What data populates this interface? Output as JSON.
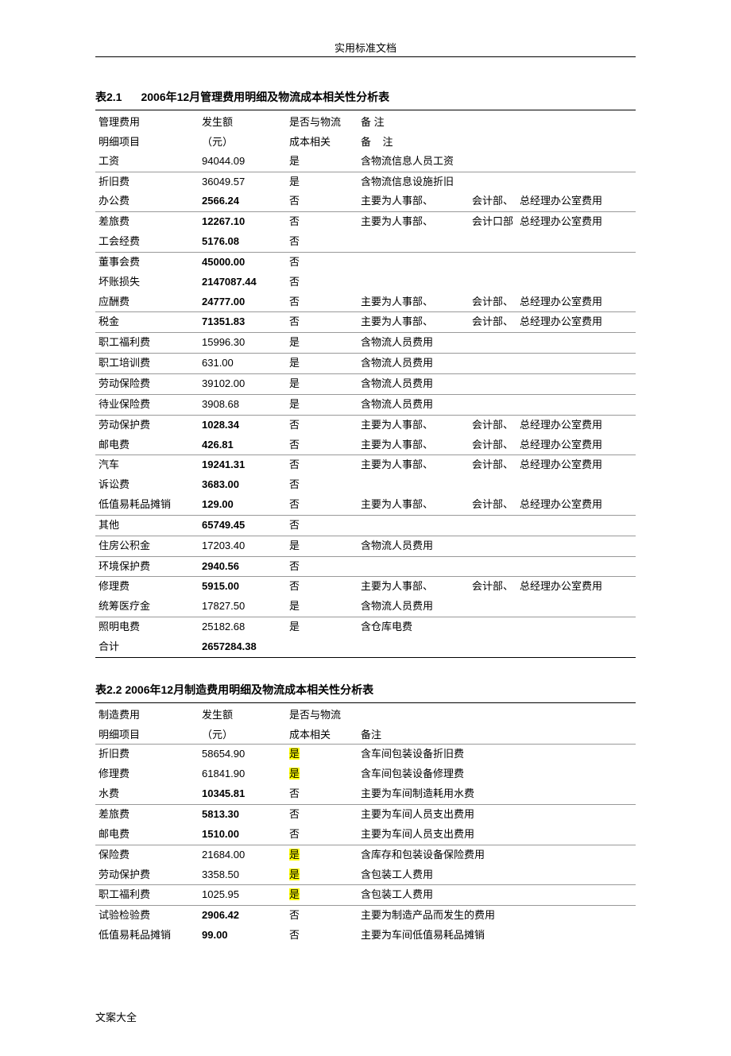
{
  "page": {
    "header": "实用标准文档",
    "footer": "文案大全"
  },
  "table1": {
    "titleNum": "表2.1",
    "titleText": "2006年12月管理费用明细及物流成本相关性分析表",
    "headers": {
      "item1": "管理费用",
      "item2": "明细项目",
      "amount1": "发生额",
      "amount2": "（元）",
      "related1": "是否与物流",
      "related2": "成本相关",
      "remarkA": "备 注",
      "remarkB1": "备",
      "remarkB2": "注"
    },
    "rows": [
      {
        "item": "工资",
        "amount": "94044.09",
        "amountBold": false,
        "related": "是",
        "r1": "含物流信息人员工资",
        "r2": "",
        "r3": "",
        "sep": false
      },
      {
        "item": "折旧费",
        "amount": "36049.57",
        "amountBold": false,
        "related": "是",
        "r1": "含物流信息设施折旧",
        "r2": "",
        "r3": "",
        "sep": true
      },
      {
        "item": "办公费",
        "amount": "2566.24",
        "amountBold": true,
        "related": "否",
        "r1": "主要为人事部、",
        "r2": "会计部、",
        "r3": "总经理办公室费用",
        "sep": false
      },
      {
        "item": "差旅费",
        "amount": "12267.10",
        "amountBold": true,
        "related": "否",
        "r1": "主要为人事部、",
        "r2": "会计口部",
        "r3": "总经理办公室费用",
        "sep": true
      },
      {
        "item": "工会经费",
        "amount": "5176.08",
        "amountBold": true,
        "related": "否",
        "r1": "",
        "r2": "",
        "r3": "",
        "sep": false
      },
      {
        "item": "董事会费",
        "amount": "45000.00",
        "amountBold": true,
        "related": "否",
        "r1": "",
        "r2": "",
        "r3": "",
        "sep": true
      },
      {
        "item": "坏账损失",
        "amount": "2147087.44",
        "amountBold": true,
        "related": "否",
        "r1": "",
        "r2": "",
        "r3": "",
        "sep": false
      },
      {
        "item": "应酬费",
        "amount": "24777.00",
        "amountBold": true,
        "related": "否",
        "r1": "主要为人事部、",
        "r2": "会计部、",
        "r3": "总经理办公室费用",
        "sep": false
      },
      {
        "item": "税金",
        "amount": "71351.83",
        "amountBold": true,
        "related": "否",
        "r1": "主要为人事部、",
        "r2": "会计部、",
        "r3": "总经理办公室费用",
        "sep": true
      },
      {
        "item": "职工福利费",
        "amount": "15996.30",
        "amountBold": false,
        "related": "是",
        "r1": "含物流人员费用",
        "r2": "",
        "r3": "",
        "sep": true
      },
      {
        "item": "职工培训费",
        "amount": "631.00",
        "amountBold": false,
        "related": "是",
        "r1": "含物流人员费用",
        "r2": "",
        "r3": "",
        "sep": true
      },
      {
        "item": "劳动保险费",
        "amount": "39102.00",
        "amountBold": false,
        "related": "是",
        "r1": "含物流人员费用",
        "r2": "",
        "r3": "",
        "sep": true
      },
      {
        "item": "待业保险费",
        "amount": "3908.68",
        "amountBold": false,
        "related": "是",
        "r1": "含物流人员费用",
        "r2": "",
        "r3": "",
        "sep": true
      },
      {
        "item": "劳动保护费",
        "amount": "1028.34",
        "amountBold": true,
        "related": "否",
        "r1": "主要为人事部、",
        "r2": "会计部、",
        "r3": "总经理办公室费用",
        "sep": true
      },
      {
        "item": "邮电费",
        "amount": "426.81",
        "amountBold": true,
        "related": "否",
        "r1": "主要为人事部、",
        "r2": "会计部、",
        "r3": "总经理办公室费用",
        "sep": false
      },
      {
        "item": "汽车",
        "amount": "19241.31",
        "amountBold": true,
        "related": "否",
        "r1": "主要为人事部、",
        "r2": "会计部、",
        "r3": "总经理办公室费用",
        "sep": true
      },
      {
        "item": "诉讼费",
        "amount": "3683.00",
        "amountBold": true,
        "related": "否",
        "r1": "",
        "r2": "",
        "r3": "",
        "sep": false
      },
      {
        "item": "低值易耗品摊销",
        "amount": "129.00",
        "amountBold": true,
        "related": "否",
        "r1": "主要为人事部、",
        "r2": "会计部、",
        "r3": "总经理办公室费用",
        "sep": false
      },
      {
        "item": "其他",
        "amount": "65749.45",
        "amountBold": true,
        "related": "否",
        "r1": "",
        "r2": "",
        "r3": "",
        "sep": true
      },
      {
        "item": "住房公积金",
        "amount": "17203.40",
        "amountBold": false,
        "related": "是",
        "r1": "含物流人员费用",
        "r2": "",
        "r3": "",
        "sep": true
      },
      {
        "item": "环境保护费",
        "amount": "2940.56",
        "amountBold": true,
        "related": "否",
        "r1": "",
        "r2": "",
        "r3": "",
        "sep": true
      },
      {
        "item": "修理费",
        "amount": "5915.00",
        "amountBold": true,
        "related": "否",
        "r1": "主要为人事部、",
        "r2": "会计部、",
        "r3": "总经理办公室费用",
        "sep": true
      },
      {
        "item": "统筹医疗金",
        "amount": "17827.50",
        "amountBold": false,
        "related": "是",
        "r1": "含物流人员费用",
        "r2": "",
        "r3": "",
        "sep": false
      },
      {
        "item": "照明电费",
        "amount": "25182.68",
        "amountBold": false,
        "related": "是",
        "r1": "含仓库电费",
        "r2": "",
        "r3": "",
        "sep": true
      },
      {
        "item": "合计",
        "amount": "2657284.38",
        "amountBold": true,
        "related": "",
        "r1": "",
        "r2": "",
        "r3": "",
        "sep": false
      }
    ]
  },
  "table2": {
    "titleFull": "表2.2 2006年12月制造费用明细及物流成本相关性分析表",
    "headers": {
      "item1": "制造费用",
      "item2": "明细项目",
      "amount1": "发生额",
      "amount2": "（元）",
      "related1": "是否与物流",
      "related2": "成本相关",
      "remark": "备注"
    },
    "rows": [
      {
        "item": "折旧费",
        "amount": "58654.90",
        "amountBold": false,
        "related": "是",
        "highlight": true,
        "r1": "含车间包装设备折旧费",
        "sep": false
      },
      {
        "item": "修理费",
        "amount": "61841.90",
        "amountBold": false,
        "related": "是",
        "highlight": true,
        "r1": "含车间包装设备修理费",
        "sep": false
      },
      {
        "item": "水费",
        "amount": "10345.81",
        "amountBold": true,
        "related": "否",
        "highlight": false,
        "r1": "主要为车间制造耗用水费",
        "sep": false
      },
      {
        "item": "差旅费",
        "amount": "5813.30",
        "amountBold": true,
        "related": "否",
        "highlight": false,
        "r1": "主要为车间人员支出费用",
        "sep": true
      },
      {
        "item": "邮电费",
        "amount": "1510.00",
        "amountBold": true,
        "related": "否",
        "highlight": false,
        "r1": "主要为车间人员支出费用",
        "sep": false
      },
      {
        "item": "保险费",
        "amount": "21684.00",
        "amountBold": false,
        "related": "是",
        "highlight": true,
        "r1": "含库存和包装设备保险费用",
        "sep": true
      },
      {
        "item": "劳动保护费",
        "amount": "3358.50",
        "amountBold": false,
        "related": "是",
        "highlight": true,
        "r1": "含包装工人费用",
        "sep": false
      },
      {
        "item": "职工福利费",
        "amount": "1025.95",
        "amountBold": false,
        "related": "是",
        "highlight": true,
        "r1": "含包装工人费用",
        "sep": true
      },
      {
        "item": "试验检验费",
        "amount": "2906.42",
        "amountBold": true,
        "related": "否",
        "highlight": false,
        "r1": "主要为制造产品而发生的费用",
        "sep": true
      },
      {
        "item": "低值易耗品摊销",
        "amount": "99.00",
        "amountBold": true,
        "related": "否",
        "highlight": false,
        "r1": "主要为车间低值易耗品摊销",
        "sep": false
      }
    ]
  }
}
